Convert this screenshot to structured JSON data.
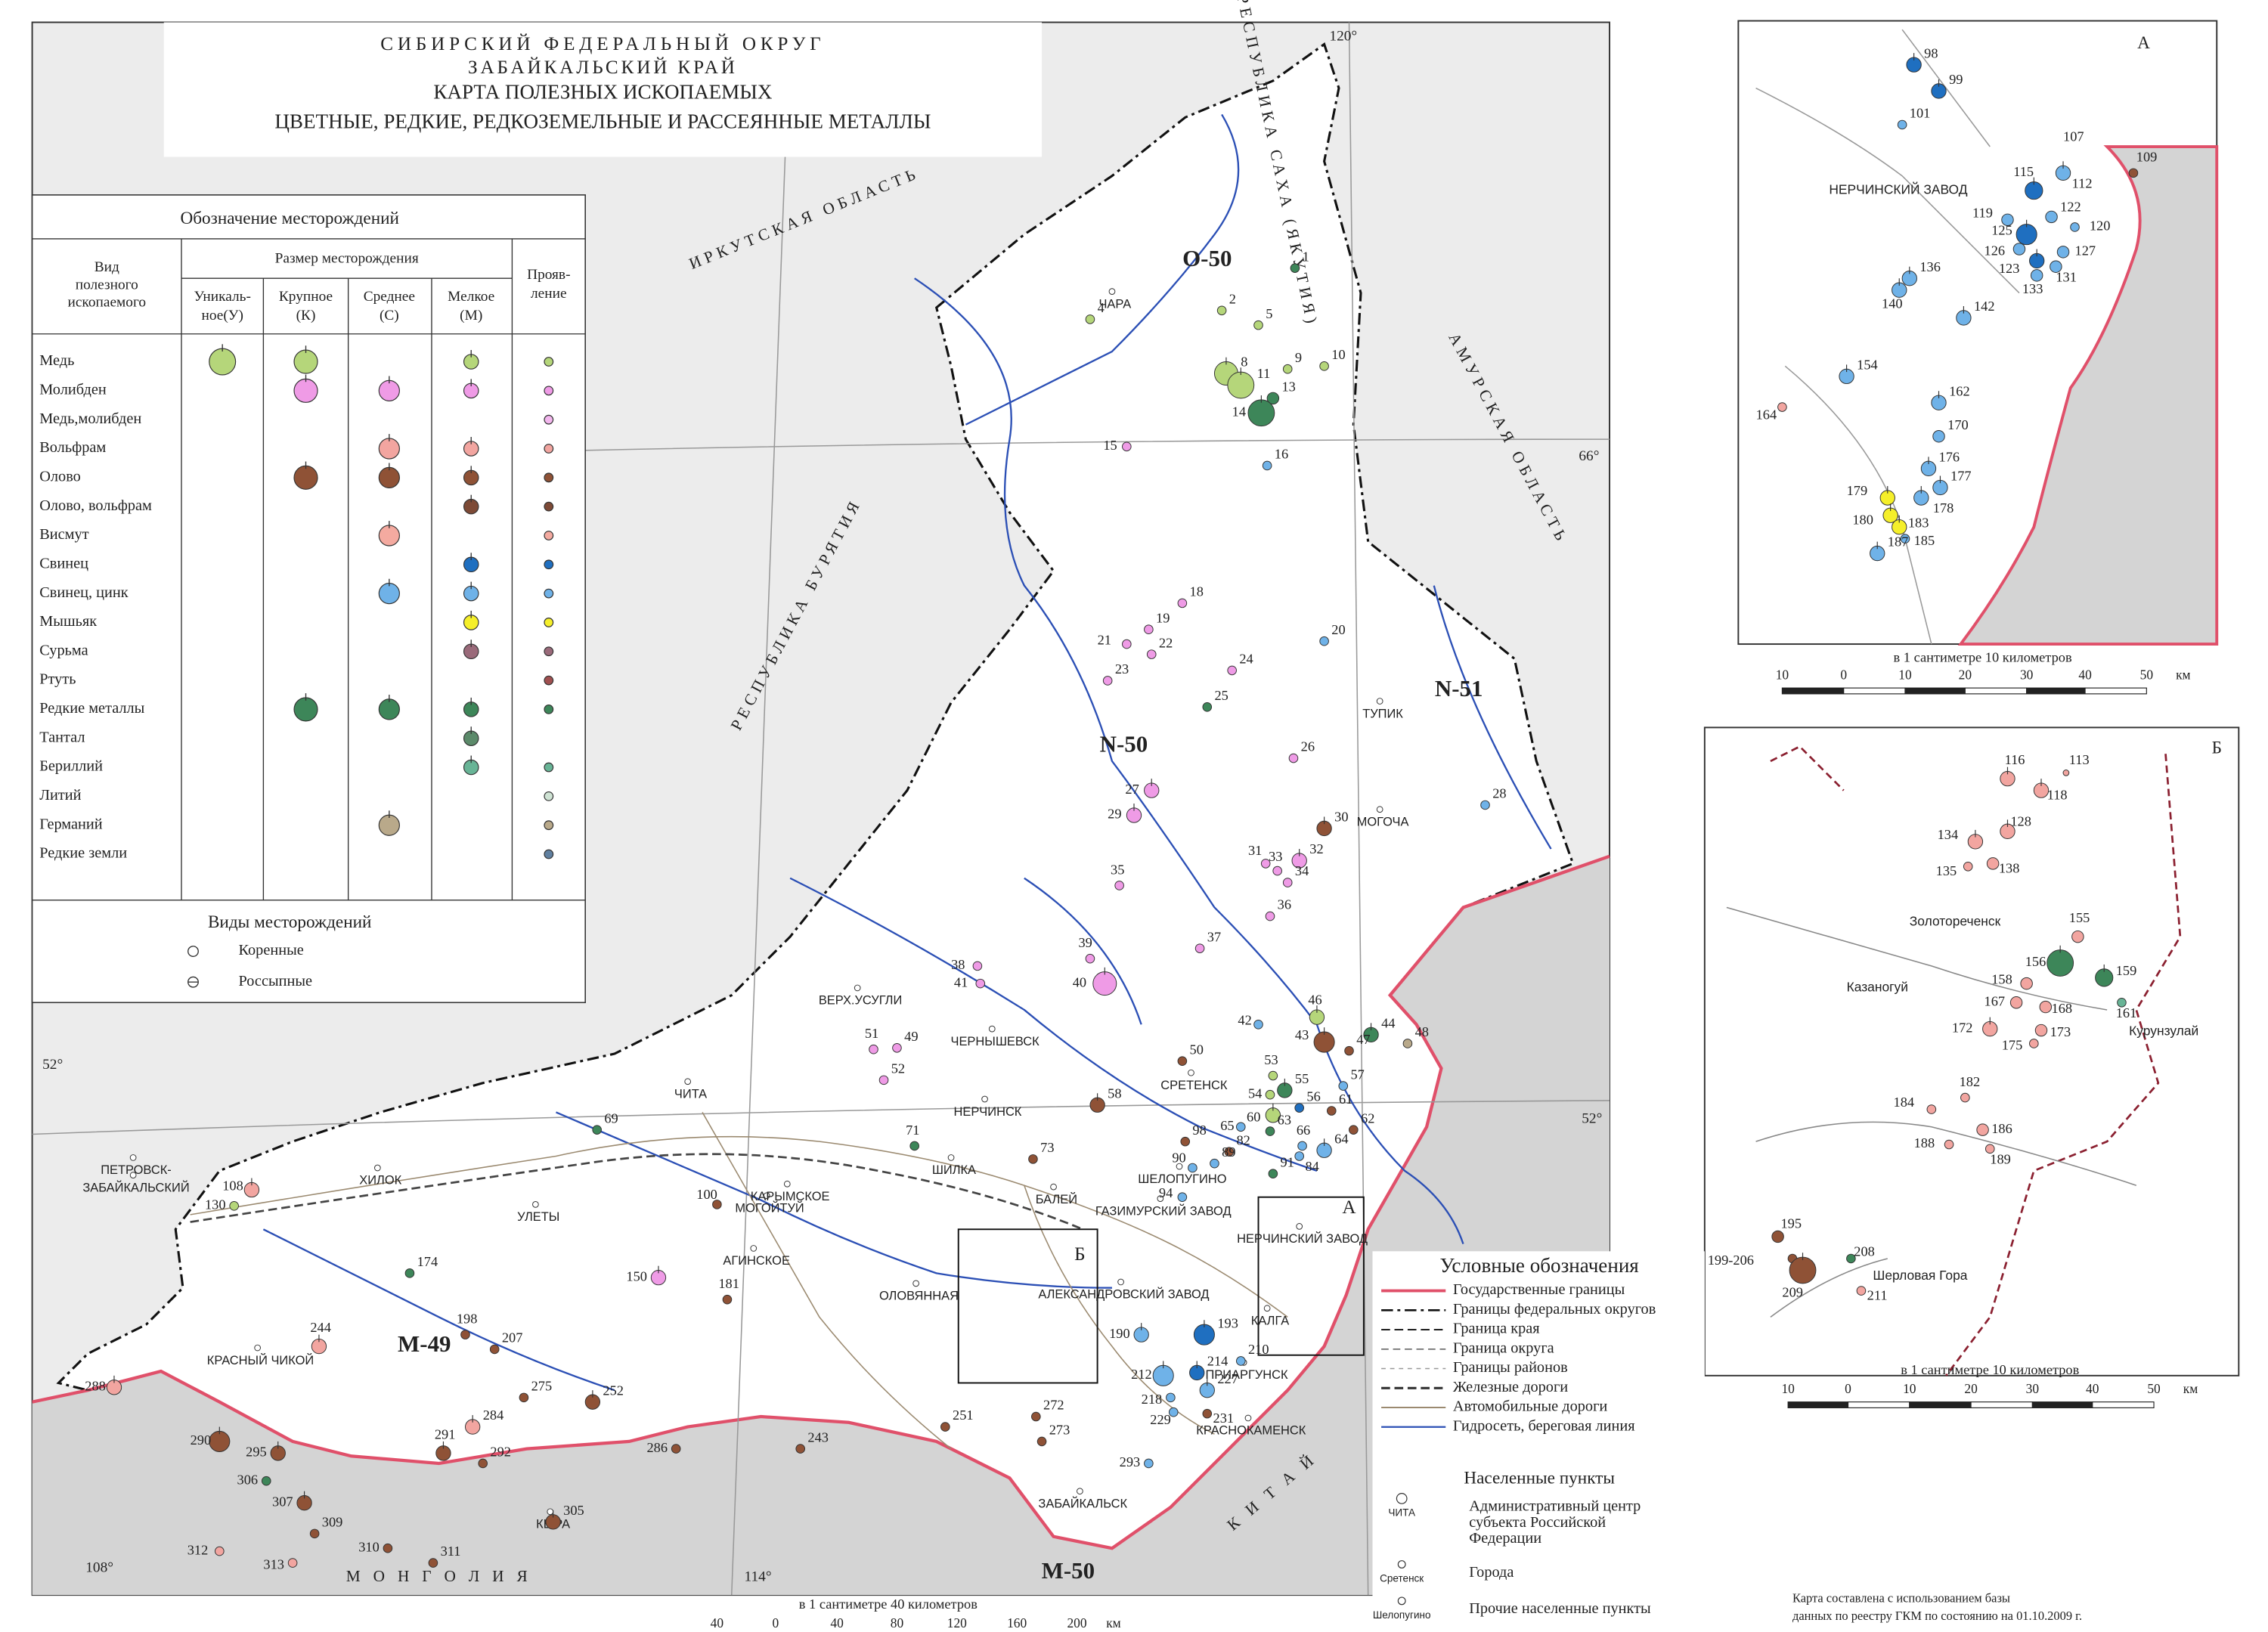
{
  "title": {
    "lines": [
      "СИБИРСКИЙ ФЕДЕРАЛЬНЫЙ ОКРУГ",
      "ЗАБАЙКАЛЬСКИЙ КРАЙ",
      "КАРТА ПОЛЕЗНЫХ ИСКОПАЕМЫХ",
      "ЦВЕТНЫЕ, РЕДКИЕ, РЕДКОЗЕМЕЛЬНЫЕ И РАССЕЯННЫЕ МЕТАЛЛЫ"
    ]
  },
  "legend_table": {
    "title": "Обозначение месторождений",
    "mineral_header": [
      "Вид",
      "полезного",
      "ископаемого"
    ],
    "size_header": "Размер месторождения",
    "size_cols": [
      [
        "Уникаль-",
        "ное(У)"
      ],
      [
        "Крупное",
        "(К)"
      ],
      [
        "Среднее",
        "(С)"
      ],
      [
        "Мелкое",
        "(М)"
      ]
    ],
    "manifest_header": [
      "Прояв-",
      "ление"
    ],
    "rows": [
      {
        "name": "Медь",
        "color": "#b5d67a"
      },
      {
        "name": "Молибден",
        "color": "#ef9be6"
      },
      {
        "name": "Медь,молибден",
        "color": "#f3b7ee"
      },
      {
        "name": "Вольфрам",
        "color": "#f2a5a0"
      },
      {
        "name": "Олово",
        "color": "#8f5236"
      },
      {
        "name": "Олово, вольфрам",
        "color": "#7d4a36"
      },
      {
        "name": "Висмут",
        "color": "#f4aaa0"
      },
      {
        "name": "Свинец",
        "color": "#1f6fc0"
      },
      {
        "name": "Свинец, цинк",
        "color": "#6fb2e8"
      },
      {
        "name": "Мышьяк",
        "color": "#f5ef2a"
      },
      {
        "name": "Сурьма",
        "color": "#9a6a7a"
      },
      {
        "name": "Ртуть",
        "color": "#a05050"
      },
      {
        "name": "Редкие металлы",
        "color": "#3d8659"
      },
      {
        "name": "Тантал",
        "color": "#5b8a6a"
      },
      {
        "name": "Бериллий",
        "color": "#68b496"
      },
      {
        "name": "Литий",
        "color": "#cfe3d4"
      },
      {
        "name": "Германий",
        "color": "#b9a98a"
      },
      {
        "name": "Редкие земли",
        "color": "#6080a0"
      }
    ]
  },
  "deposit_types": {
    "title": "Виды месторождений",
    "items": [
      "Коренные",
      "Россыпные"
    ]
  },
  "map": {
    "sheets": [
      "O-50",
      "N-50",
      "N-51",
      "M-49",
      "M-50"
    ],
    "graticule": [
      "120°",
      "66°",
      "52°",
      "52°",
      "114°",
      "108°"
    ],
    "regions": [
      "ИРКУТСКАЯ ОБЛАСТЬ",
      "РЕСПУБЛИКА САХА (ЯКУТИЯ)",
      "АМУРСКАЯ ОБЛАСТЬ",
      "РЕСПУБЛИКА БУРЯТИЯ",
      "М О Н Г О Л И Я",
      "К И Т А Й"
    ],
    "places": [
      "ЧИТА",
      "НЕРЧИНСК",
      "МОГОЧА",
      "КРАСНОКАМЕНСК",
      "ЗАБАЙКАЛЬСК",
      "ПЕТРОВСК-",
      "ЗАБАЙКАЛЬСКИЙ",
      "ХИЛОК",
      "УЛЕТЫ",
      "КРАСНЫЙ ЧИКОЙ",
      "АГИНСКОЕ",
      "ОЛОВЯННАЯ",
      "БАЛЕЙ",
      "ШИЛКА",
      "ЧАРА",
      "ТУПИК",
      "СРЕТЕНСК",
      "ШЕЛОПУГИНО",
      "ГАЗИМУРСКИЙ ЗАВОД",
      "НЕРЧИНСКИЙ ЗАВОД",
      "АЛЕКСАНДРОВСКИЙ ЗАВОД",
      "ПРИАРГУНСК",
      "КАЛГА",
      "КЫРА",
      "МОГОЙТУЙ",
      "КАРЫМСКОЕ",
      "ЧЕРНЫШЕВСК",
      "ВЕРХ.УСУГЛИ"
    ],
    "inset_frames": [
      "А",
      "Б"
    ],
    "deposits": [
      {
        "label": "1",
        "color": "#3d8659"
      },
      {
        "label": "2",
        "color": "#b5d67a"
      },
      {
        "label": "4",
        "color": "#b5d67a"
      },
      {
        "label": "5",
        "color": "#b5d67a"
      },
      {
        "label": "8",
        "color": "#b5d67a"
      },
      {
        "label": "9",
        "color": "#b5d67a"
      },
      {
        "label": "10",
        "color": "#b5d67a"
      },
      {
        "label": "11",
        "color": "#b5d67a"
      },
      {
        "label": "13",
        "color": "#3d8659"
      },
      {
        "label": "14",
        "color": "#3d8659"
      },
      {
        "label": "15",
        "color": "#ef9be6"
      },
      {
        "label": "16",
        "color": "#6fb2e8"
      },
      {
        "label": "18",
        "color": "#ef9be6"
      },
      {
        "label": "19",
        "color": "#ef9be6"
      },
      {
        "label": "20",
        "color": "#6fb2e8"
      },
      {
        "label": "21",
        "color": "#ef9be6"
      },
      {
        "label": "22",
        "color": "#ef9be6"
      },
      {
        "label": "23",
        "color": "#ef9be6"
      },
      {
        "label": "24",
        "color": "#ef9be6"
      },
      {
        "label": "25",
        "color": "#3d8659"
      },
      {
        "label": "26",
        "color": "#ef9be6"
      },
      {
        "label": "27",
        "color": "#ef9be6"
      },
      {
        "label": "28",
        "color": "#6fb2e8"
      },
      {
        "label": "29",
        "color": "#ef9be6"
      },
      {
        "label": "30",
        "color": "#8f5236"
      },
      {
        "label": "31",
        "color": "#ef9be6"
      },
      {
        "label": "32",
        "color": "#ef9be6"
      },
      {
        "label": "33",
        "color": "#ef9be6"
      },
      {
        "label": "34",
        "color": "#ef9be6"
      },
      {
        "label": "35",
        "color": "#ef9be6"
      },
      {
        "label": "36",
        "color": "#ef9be6"
      },
      {
        "label": "37",
        "color": "#ef9be6"
      },
      {
        "label": "38",
        "color": "#ef9be6"
      },
      {
        "label": "39",
        "color": "#ef9be6"
      },
      {
        "label": "40",
        "color": "#ef9be6"
      },
      {
        "label": "41",
        "color": "#ef9be6"
      },
      {
        "label": "42",
        "color": "#6fb2e8"
      },
      {
        "label": "43",
        "color": "#8f5236"
      },
      {
        "label": "44",
        "color": "#3d8659"
      },
      {
        "label": "46",
        "color": "#b5d67a"
      },
      {
        "label": "47",
        "color": "#8f5236"
      },
      {
        "label": "48",
        "color": "#b9a98a"
      },
      {
        "label": "49",
        "color": "#ef9be6"
      },
      {
        "label": "50",
        "color": "#8f5236"
      },
      {
        "label": "51",
        "color": "#ef9be6"
      },
      {
        "label": "52",
        "color": "#ef9be6"
      },
      {
        "label": "53",
        "color": "#b5d67a"
      },
      {
        "label": "54",
        "color": "#b5d67a"
      },
      {
        "label": "55",
        "color": "#3d8659"
      },
      {
        "label": "56",
        "color": "#1f6fc0"
      },
      {
        "label": "57",
        "color": "#6fb2e8"
      },
      {
        "label": "58",
        "color": "#8f5236"
      },
      {
        "label": "60",
        "color": "#b5d67a"
      },
      {
        "label": "61",
        "color": "#8f5236"
      },
      {
        "label": "62",
        "color": "#8f5236"
      },
      {
        "label": "63",
        "color": "#3d8659"
      },
      {
        "label": "64",
        "color": "#6fb2e8"
      },
      {
        "label": "65",
        "color": "#6fb2e8"
      },
      {
        "label": "66",
        "color": "#6fb2e8"
      },
      {
        "label": "69",
        "color": "#3d8659"
      },
      {
        "label": "71",
        "color": "#3d8659"
      },
      {
        "label": "73",
        "color": "#8f5236"
      },
      {
        "label": "82",
        "color": "#8f5236"
      },
      {
        "label": "84",
        "color": "#6fb2e8"
      },
      {
        "label": "89",
        "color": "#6fb2e8"
      },
      {
        "label": "90",
        "color": "#6fb2e8"
      },
      {
        "label": "91",
        "color": "#3d8659"
      },
      {
        "label": "94",
        "color": "#6fb2e8"
      },
      {
        "label": "98",
        "color": "#8f5236"
      },
      {
        "label": "100",
        "color": "#8f5236"
      },
      {
        "label": "108",
        "color": "#f2a5a0"
      },
      {
        "label": "130",
        "color": "#b5d67a"
      },
      {
        "label": "150",
        "color": "#ef9be6"
      },
      {
        "label": "174",
        "color": "#3d8659"
      },
      {
        "label": "181",
        "color": "#8f5236"
      },
      {
        "label": "190",
        "color": "#6fb2e8"
      },
      {
        "label": "193",
        "color": "#1f6fc0"
      },
      {
        "label": "198",
        "color": "#8f5236"
      },
      {
        "label": "207",
        "color": "#8f5236"
      },
      {
        "label": "210",
        "color": "#6fb2e8"
      },
      {
        "label": "212",
        "color": "#6fb2e8"
      },
      {
        "label": "214",
        "color": "#1f6fc0"
      },
      {
        "label": "218",
        "color": "#6fb2e8"
      },
      {
        "label": "227",
        "color": "#6fb2e8"
      },
      {
        "label": "229",
        "color": "#6fb2e8"
      },
      {
        "label": "231",
        "color": "#8f5236"
      },
      {
        "label": "243",
        "color": "#8f5236"
      },
      {
        "label": "244",
        "color": "#f2a5a0"
      },
      {
        "label": "251",
        "color": "#8f5236"
      },
      {
        "label": "252",
        "color": "#8f5236"
      },
      {
        "label": "272",
        "color": "#8f5236"
      },
      {
        "label": "273",
        "color": "#8f5236"
      },
      {
        "label": "275",
        "color": "#8f5236"
      },
      {
        "label": "284",
        "color": "#f2a5a0"
      },
      {
        "label": "286",
        "color": "#8f5236"
      },
      {
        "label": "288",
        "color": "#f2a5a0"
      },
      {
        "label": "290",
        "color": "#8f5236"
      },
      {
        "label": "291",
        "color": "#8f5236"
      },
      {
        "label": "292",
        "color": "#8f5236"
      },
      {
        "label": "293",
        "color": "#6fb2e8"
      },
      {
        "label": "295",
        "color": "#8f5236"
      },
      {
        "label": "305",
        "color": "#8f5236"
      },
      {
        "label": "306",
        "color": "#3d8659"
      },
      {
        "label": "307",
        "color": "#8f5236"
      },
      {
        "label": "309",
        "color": "#8f5236"
      },
      {
        "label": "310",
        "color": "#8f5236"
      },
      {
        "label": "311",
        "color": "#8f5236"
      },
      {
        "label": "312",
        "color": "#f2a5a0"
      },
      {
        "label": "313",
        "color": "#f2a5a0"
      }
    ]
  },
  "scale": {
    "caption": "в 1 сантиметре 40 километров",
    "ticks": [
      "40",
      "0",
      "40",
      "80",
      "120",
      "160",
      "200"
    ],
    "unit": "км"
  },
  "inset_a": {
    "letter": "А",
    "places": [
      "НЕРЧИНСКИЙ ЗАВОД"
    ],
    "deposits": [
      {
        "label": "98",
        "color": "#1f6fc0"
      },
      {
        "label": "99",
        "color": "#1f6fc0"
      },
      {
        "label": "101",
        "color": "#6fb2e8"
      },
      {
        "label": "107",
        "color": "#6fb2e8"
      },
      {
        "label": "109",
        "color": "#8f5236"
      },
      {
        "label": "112",
        "color": "#6fb2e8"
      },
      {
        "label": "115",
        "color": "#1f6fc0"
      },
      {
        "label": "119",
        "color": "#6fb2e8"
      },
      {
        "label": "120",
        "color": "#6fb2e8"
      },
      {
        "label": "122",
        "color": "#6fb2e8"
      },
      {
        "label": "125",
        "color": "#1f6fc0"
      },
      {
        "label": "126",
        "color": "#6fb2e8"
      },
      {
        "label": "123",
        "color": "#1f6fc0"
      },
      {
        "label": "127",
        "color": "#6fb2e8"
      },
      {
        "label": "131",
        "color": "#6fb2e8"
      },
      {
        "label": "133",
        "color": "#6fb2e8"
      },
      {
        "label": "136",
        "color": "#6fb2e8"
      },
      {
        "label": "140",
        "color": "#6fb2e8"
      },
      {
        "label": "142",
        "color": "#6fb2e8"
      },
      {
        "label": "154",
        "color": "#6fb2e8"
      },
      {
        "label": "162",
        "color": "#6fb2e8"
      },
      {
        "label": "164",
        "color": "#f2a5a0"
      },
      {
        "label": "170",
        "color": "#6fb2e8"
      },
      {
        "label": "176",
        "color": "#6fb2e8"
      },
      {
        "label": "177",
        "color": "#6fb2e8"
      },
      {
        "label": "178",
        "color": "#6fb2e8"
      },
      {
        "label": "179",
        "color": "#f5ef2a"
      },
      {
        "label": "180",
        "color": "#f5ef2a"
      },
      {
        "label": "183",
        "color": "#f5ef2a"
      },
      {
        "label": "185",
        "color": "#6fb2e8"
      },
      {
        "label": "187",
        "color": "#6fb2e8"
      }
    ],
    "scale": {
      "caption": "в 1 сантиметре 10 километров",
      "ticks": [
        "10",
        "0",
        "10",
        "20",
        "30",
        "40",
        "50"
      ],
      "unit": "км"
    }
  },
  "inset_b": {
    "letter": "Б",
    "places": [
      "Золотореченск",
      "Казаногуй",
      "Курунзулай",
      "Шерловая Гора"
    ],
    "deposits": [
      {
        "label": "113",
        "color": "#f2a5a0"
      },
      {
        "label": "116",
        "color": "#f2a5a0"
      },
      {
        "label": "118",
        "color": "#f2a5a0"
      },
      {
        "label": "128",
        "color": "#f2a5a0"
      },
      {
        "label": "134",
        "color": "#f2a5a0"
      },
      {
        "label": "135",
        "color": "#f2a5a0"
      },
      {
        "label": "138",
        "color": "#f2a5a0"
      },
      {
        "label": "155",
        "color": "#f2a5a0"
      },
      {
        "label": "156",
        "color": "#3d8659"
      },
      {
        "label": "159",
        "color": "#3d8659"
      },
      {
        "label": "161",
        "color": "#68b496"
      },
      {
        "label": "158",
        "color": "#f2a5a0"
      },
      {
        "label": "167",
        "color": "#f2a5a0"
      },
      {
        "label": "168",
        "color": "#f2a5a0"
      },
      {
        "label": "172",
        "color": "#f2a5a0"
      },
      {
        "label": "173",
        "color": "#f2a5a0"
      },
      {
        "label": "175",
        "color": "#f2a5a0"
      },
      {
        "label": "182",
        "color": "#f2a5a0"
      },
      {
        "label": "184",
        "color": "#f2a5a0"
      },
      {
        "label": "186",
        "color": "#f2a5a0"
      },
      {
        "label": "188",
        "color": "#f2a5a0"
      },
      {
        "label": "189",
        "color": "#f2a5a0"
      },
      {
        "label": "195",
        "color": "#8f5236"
      },
      {
        "label": "199-206",
        "color": "#8f5236"
      },
      {
        "label": "208",
        "color": "#3d8659"
      },
      {
        "label": "209",
        "color": "#8f5236"
      },
      {
        "label": "211",
        "color": "#f2a5a0"
      }
    ],
    "scale": {
      "caption": "в 1 сантиметре 10 километров",
      "ticks": [
        "10",
        "0",
        "10",
        "20",
        "30",
        "40",
        "50"
      ],
      "unit": "км"
    }
  },
  "conventions": {
    "title": "Условные обозначения",
    "lines": [
      "Государственные границы",
      "Границы федеральных округов",
      "Граница края",
      "Граница округа",
      "Границы районов",
      "Железные дороги",
      "Автомобильные дороги",
      "Гидросеть, береговая линия"
    ],
    "settlements_title": "Населенные пункты",
    "settlements": [
      {
        "sample": "ЧИТА",
        "lines": [
          "Административный центр",
          "субъекта Российской",
          "Федерации"
        ]
      },
      {
        "sample": "Сретенск",
        "lines": [
          "Города"
        ]
      },
      {
        "sample": "Шелопугино",
        "lines": [
          "Прочие населенные пункты"
        ]
      }
    ]
  },
  "note": [
    "Карта составлена с использованием базы",
    "данных по реестру ГКМ  по состоянию на 01.10.2009 г."
  ]
}
